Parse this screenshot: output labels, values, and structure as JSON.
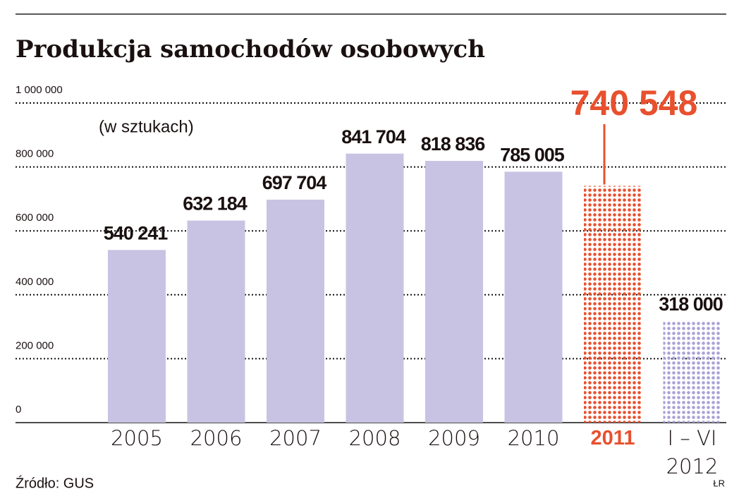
{
  "chart_data": {
    "type": "bar",
    "title": "Produkcja samochodów osobowych",
    "subtitle": "(w sztukach)",
    "source": "Źródło: GUS",
    "credit": "ŁR",
    "categories": [
      "2005",
      "2006",
      "2007",
      "2008",
      "2009",
      "2010",
      "2011",
      "I – VI\n2012"
    ],
    "values": [
      540241,
      632184,
      697704,
      841704,
      818836,
      785005,
      740548,
      318000
    ],
    "value_labels": [
      "540 241",
      "632 184",
      "697 704",
      "841 704",
      "818 836",
      "785 005",
      "740 548",
      "318 000"
    ],
    "colors": [
      "#c8c3e3",
      "#c8c3e3",
      "#c8c3e3",
      "#c8c3e3",
      "#c8c3e3",
      "#c8c3e3",
      "#e8502e",
      "#a9a2d6"
    ],
    "dotted": [
      false,
      false,
      false,
      false,
      false,
      false,
      true,
      true
    ],
    "highlight_color": "#e8502e",
    "ylim": [
      0,
      1000000
    ],
    "yticks": [
      0,
      {
        "value": 200000,
        "label": "200 000"
      },
      {
        "value": 400000,
        "label": "400 000"
      },
      {
        "value": 600000,
        "label": "600 000"
      },
      {
        "value": 800000,
        "label": "800 000"
      },
      {
        "value": 1000000,
        "label": "1 000 000"
      }
    ],
    "grid": true
  }
}
